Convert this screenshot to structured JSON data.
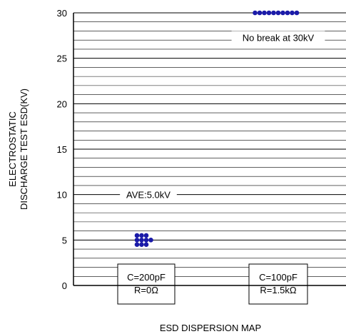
{
  "chart_data": {
    "type": "scatter",
    "title": "",
    "xlabel": "ESD DISPERSION MAP",
    "ylabel": [
      "ELECTROSTATIC",
      "DISCHARGE TEST ESD(KV)"
    ],
    "ylim": [
      0,
      30
    ],
    "yticks": [
      0,
      5,
      10,
      15,
      20,
      25,
      30
    ],
    "grid": true,
    "grid_step": 1,
    "legend": "none",
    "point_color": "#1a1aa8",
    "categories": [
      {
        "name": "C=200pF R=0Ω",
        "lines": [
          "C=200pF",
          "R=0Ω"
        ]
      },
      {
        "name": "C=100pF R=1.5kΩ",
        "lines": [
          "C=100pF",
          "R=1.5kΩ"
        ]
      }
    ],
    "series": [
      {
        "category": 0,
        "points": [
          {
            "offset": -2,
            "y": 5.5
          },
          {
            "offset": -1,
            "y": 5.5
          },
          {
            "offset": 0,
            "y": 5.5
          },
          {
            "offset": -2,
            "y": 5.0
          },
          {
            "offset": -1,
            "y": 5.0
          },
          {
            "offset": 0,
            "y": 5.0
          },
          {
            "offset": 1,
            "y": 5.0
          },
          {
            "offset": -2,
            "y": 4.5
          },
          {
            "offset": -1,
            "y": 4.5
          },
          {
            "offset": 0,
            "y": 4.5
          }
        ]
      },
      {
        "category": 1,
        "points": [
          {
            "offset": -5,
            "y": 30
          },
          {
            "offset": -4,
            "y": 30
          },
          {
            "offset": -3,
            "y": 30
          },
          {
            "offset": -2,
            "y": 30
          },
          {
            "offset": -1,
            "y": 30
          },
          {
            "offset": 0,
            "y": 30
          },
          {
            "offset": 1,
            "y": 30
          },
          {
            "offset": 2,
            "y": 30
          },
          {
            "offset": 3,
            "y": 30
          },
          {
            "offset": 4,
            "y": 30
          }
        ]
      }
    ],
    "annotations": [
      {
        "text": "No break at 30kV",
        "y": 27.3
      },
      {
        "text": "AVE:5.0kV",
        "y": 10
      }
    ]
  }
}
